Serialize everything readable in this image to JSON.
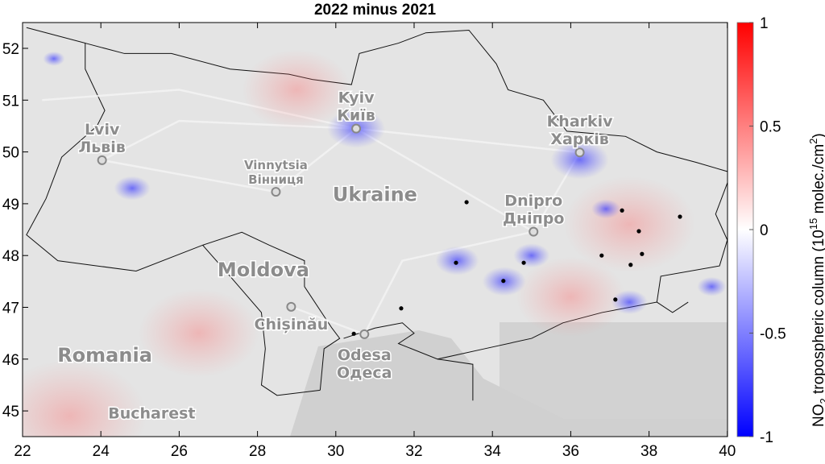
{
  "chart_data": {
    "type": "map",
    "title": "2022 minus 2021",
    "xlim": [
      22,
      40.5
    ],
    "ylim": [
      44.5,
      52.5
    ],
    "xticks": [
      "22",
      "24",
      "26",
      "28",
      "30",
      "32",
      "34",
      "36",
      "38",
      "40"
    ],
    "yticks": [
      "45",
      "46",
      "47",
      "48",
      "49",
      "50",
      "51",
      "52"
    ],
    "colorbar": {
      "label_main": "NO",
      "label_sub": "2",
      "label_rest": " tropospheric column (10",
      "label_sup": "15",
      "label_unit": " molec./cm",
      "label_unit_sup": "2",
      "label_close": ")",
      "range": [
        -1,
        1
      ],
      "ticks": [
        "-1",
        "-0.5",
        "0",
        "0.5",
        "1"
      ],
      "colormap": [
        "#0000ff",
        "#ffffff",
        "#ff0000"
      ]
    },
    "cities": [
      {
        "en": "Kyiv",
        "local": "Київ",
        "lon": 30.52,
        "lat": 50.45,
        "size": 19
      },
      {
        "en": "Kharkiv",
        "local": "Харків",
        "lon": 36.23,
        "lat": 49.99,
        "size": 19
      },
      {
        "en": "Lviv",
        "local": "Львів",
        "lon": 24.03,
        "lat": 49.84,
        "size": 19
      },
      {
        "en": "Vinnytsia",
        "local": "Вінниця",
        "lon": 28.47,
        "lat": 49.23,
        "size": 15
      },
      {
        "en": "Dnipro",
        "local": "Дніпро",
        "lon": 35.05,
        "lat": 48.46,
        "size": 19
      },
      {
        "en": "Chișinău",
        "local": "",
        "lon": 28.86,
        "lat": 47.01,
        "size": 19
      },
      {
        "en": "Odesa",
        "local": "Одеса",
        "lon": 30.73,
        "lat": 46.48,
        "size": 19
      }
    ],
    "countries": [
      {
        "name": "Ukraine",
        "lon": 31.0,
        "lat": 49.05
      },
      {
        "name": "Moldova",
        "lon": 28.15,
        "lat": 47.6
      },
      {
        "name": "Romania",
        "lon": 24.1,
        "lat": 45.95
      },
      {
        "name": "Bucharest",
        "lon": 25.3,
        "lat": 44.85
      }
    ],
    "point_sources": [
      [
        33.34,
        49.03
      ],
      [
        37.31,
        48.87
      ],
      [
        38.79,
        48.75
      ],
      [
        37.74,
        48.47
      ],
      [
        37.82,
        48.03
      ],
      [
        36.79,
        48.0
      ],
      [
        37.53,
        47.82
      ],
      [
        33.07,
        47.86
      ],
      [
        34.8,
        47.86
      ],
      [
        34.28,
        47.51
      ],
      [
        37.14,
        47.15
      ],
      [
        31.67,
        46.98
      ],
      [
        30.46,
        46.49
      ]
    ],
    "negative_hotspots": [
      {
        "lon": 30.52,
        "lat": 50.45,
        "value": -0.8
      },
      {
        "lon": 36.23,
        "lat": 49.85,
        "value": -0.8
      },
      {
        "lon": 33.1,
        "lat": 47.9,
        "value": -0.6
      },
      {
        "lon": 34.3,
        "lat": 47.5,
        "value": -0.6
      },
      {
        "lon": 35.0,
        "lat": 48.0,
        "value": -0.5
      },
      {
        "lon": 37.5,
        "lat": 47.1,
        "value": -0.5
      },
      {
        "lon": 24.8,
        "lat": 49.3,
        "value": -0.5
      },
      {
        "lon": 36.9,
        "lat": 48.9,
        "value": -0.4
      },
      {
        "lon": 22.8,
        "lat": 51.8,
        "value": -0.3
      },
      {
        "lon": 39.6,
        "lat": 47.4,
        "value": -0.4
      }
    ],
    "positive_areas": [
      {
        "lon": 26.5,
        "lat": 46.5,
        "value": 0.25
      },
      {
        "lon": 23.2,
        "lat": 44.9,
        "value": 0.4
      },
      {
        "lon": 37.5,
        "lat": 48.6,
        "value": 0.3
      },
      {
        "lon": 29.0,
        "lat": 51.2,
        "value": 0.2
      },
      {
        "lon": 36.0,
        "lat": 47.2,
        "value": 0.2
      }
    ]
  }
}
